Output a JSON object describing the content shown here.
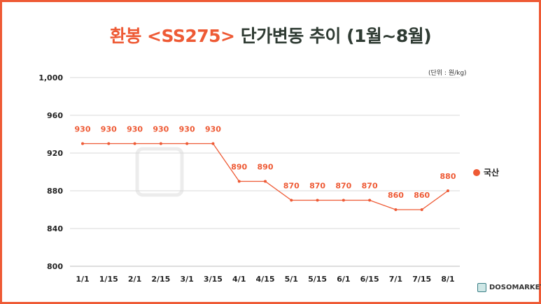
{
  "title": {
    "highlight": "환봉 <SS275>",
    "rest": " 단가변동 추이 (1월~8월)"
  },
  "unit_label": "(단위 : 원/kg)",
  "watermark": "DOSOMARKET",
  "logo_text": "DOSOMARKET",
  "colors": {
    "accent": "#ee5a35",
    "grid": "#d9d9d9"
  },
  "chart_data": {
    "type": "line",
    "title": "환봉 <SS275> 단가변동 추이 (1월~8월)",
    "xlabel": "",
    "ylabel": "",
    "categories": [
      "1/1",
      "1/15",
      "2/1",
      "2/15",
      "3/1",
      "3/15",
      "4/1",
      "4/15",
      "5/1",
      "5/15",
      "6/1",
      "6/15",
      "7/1",
      "7/15",
      "8/1"
    ],
    "series": [
      {
        "name": "국산",
        "values": [
          930,
          930,
          930,
          930,
          930,
          930,
          890,
          890,
          870,
          870,
          870,
          870,
          860,
          860,
          880
        ]
      }
    ],
    "ylim": [
      800,
      1000
    ],
    "yticks": [
      800,
      840,
      880,
      920,
      960,
      1000
    ],
    "ytick_labels": [
      "800",
      "840",
      "880",
      "920",
      "960",
      "1,000"
    ],
    "grid": true,
    "legend": "right"
  }
}
